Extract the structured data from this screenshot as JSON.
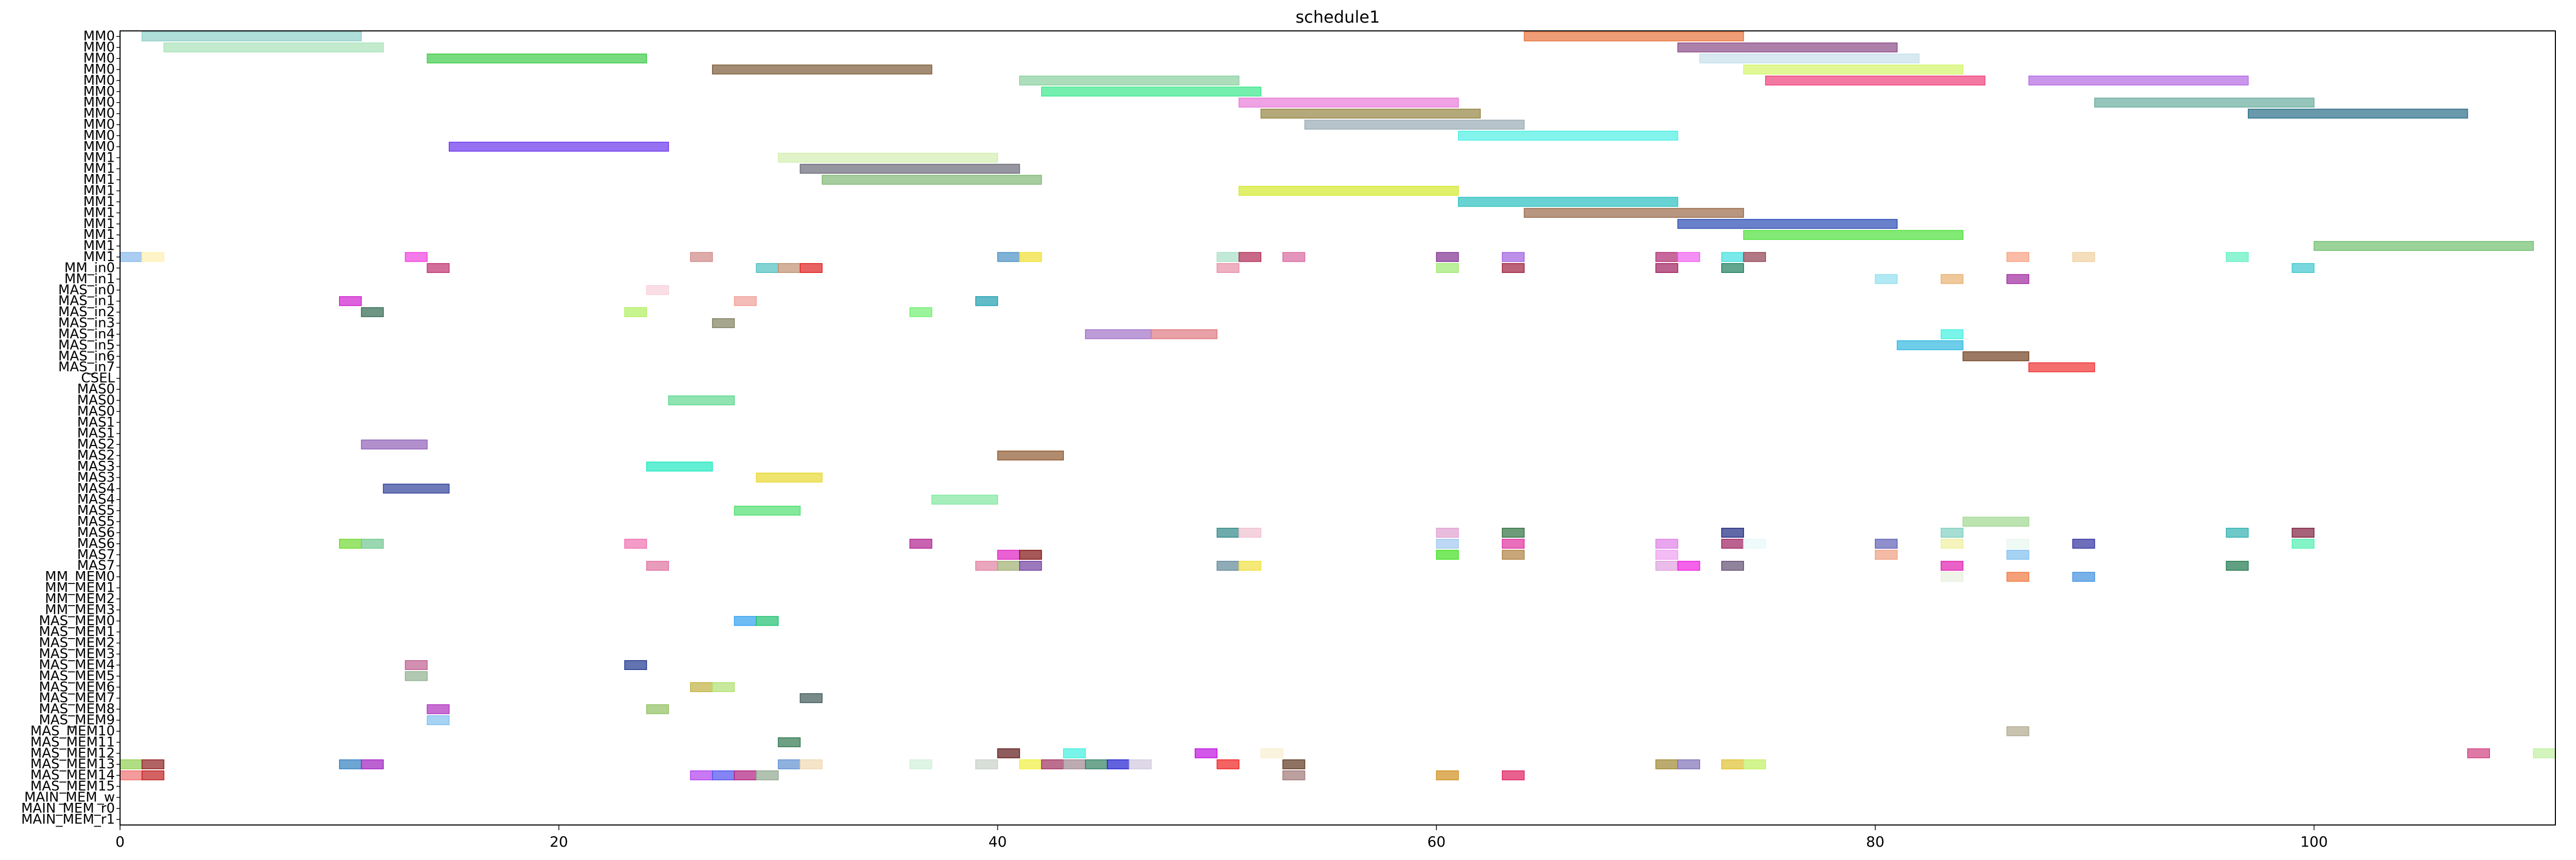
{
  "chart_data": {
    "type": "gantt",
    "title": "schedule1",
    "xlabel": "",
    "ylabel": "",
    "xlim": [
      0,
      111
    ],
    "x_ticks": [
      0,
      20,
      40,
      60,
      80,
      100
    ],
    "grid": false,
    "rows": [
      "MM0",
      "MM0",
      "MM0",
      "MM0",
      "MM0",
      "MM0",
      "MM0",
      "MM0",
      "MM0",
      "MM0",
      "MM0",
      "MM1",
      "MM1",
      "MM1",
      "MM1",
      "MM1",
      "MM1",
      "MM1",
      "MM1",
      "MM1",
      "MM1",
      "MM_in0",
      "MM_in1",
      "MAS_in0",
      "MAS_in1",
      "MAS_in2",
      "MAS_in3",
      "MAS_in4",
      "MAS_in5",
      "MAS_in6",
      "MAS_in7",
      "CSEL",
      "MAS0",
      "MAS0",
      "MAS0",
      "MAS1",
      "MAS1",
      "MAS2",
      "MAS2",
      "MAS3",
      "MAS3",
      "MAS4",
      "MAS4",
      "MAS5",
      "MAS5",
      "MAS6",
      "MAS6",
      "MAS7",
      "MAS7",
      "MM_MEM0",
      "MM_MEM1",
      "MM_MEM2",
      "MM_MEM3",
      "MAS_MEM0",
      "MAS_MEM1",
      "MAS_MEM2",
      "MAS_MEM3",
      "MAS_MEM4",
      "MAS_MEM5",
      "MAS_MEM6",
      "MAS_MEM7",
      "MAS_MEM8",
      "MAS_MEM9",
      "MAS_MEM10",
      "MAS_MEM11",
      "MAS_MEM12",
      "MAS_MEM13",
      "MAS_MEM14",
      "MAS_MEM15",
      "MAIN_MEM_w",
      "MAIN_MEM_r0",
      "MAIN_MEM_r1"
    ],
    "tasks": [
      {
        "row": 0,
        "start": 1,
        "end": 11,
        "color": "#8fd0c8"
      },
      {
        "row": 0,
        "start": 64,
        "end": 74,
        "color": "#e8743c"
      },
      {
        "row": 1,
        "start": 2,
        "end": 12,
        "color": "#a8e2b8"
      },
      {
        "row": 1,
        "start": 71,
        "end": 81,
        "color": "#8a4a86"
      },
      {
        "row": 2,
        "start": 14,
        "end": 24,
        "color": "#3fcc4a"
      },
      {
        "row": 2,
        "start": 72,
        "end": 82,
        "color": "#c8e0ec"
      },
      {
        "row": 3,
        "start": 27,
        "end": 37,
        "color": "#7a5a36"
      },
      {
        "row": 3,
        "start": 74,
        "end": 84,
        "color": "#d4f56a"
      },
      {
        "row": 4,
        "start": 41,
        "end": 51,
        "color": "#8ad0a0"
      },
      {
        "row": 4,
        "start": 75,
        "end": 85,
        "color": "#f0407a"
      },
      {
        "row": 4,
        "start": 87,
        "end": 97,
        "color": "#b46ae4"
      },
      {
        "row": 5,
        "start": 42,
        "end": 52,
        "color": "#3ae88c"
      },
      {
        "row": 6,
        "start": 51,
        "end": 61,
        "color": "#e87ad8"
      },
      {
        "row": 6,
        "start": 90,
        "end": 100,
        "color": "#6aaca0"
      },
      {
        "row": 7,
        "start": 52,
        "end": 62,
        "color": "#948442"
      },
      {
        "row": 7,
        "start": 97,
        "end": 107,
        "color": "#2a6e86"
      },
      {
        "row": 8,
        "start": 54,
        "end": 64,
        "color": "#98aab4"
      },
      {
        "row": 9,
        "start": 61,
        "end": 71,
        "color": "#4ef0e4"
      },
      {
        "row": 10,
        "start": 15,
        "end": 25,
        "color": "#6a34ec"
      },
      {
        "row": 11,
        "start": 30,
        "end": 40,
        "color": "#d4eeb0"
      },
      {
        "row": 12,
        "start": 31,
        "end": 41,
        "color": "#6a6a78"
      },
      {
        "row": 13,
        "start": 32,
        "end": 42,
        "color": "#80b874"
      },
      {
        "row": 14,
        "start": 51,
        "end": 61,
        "color": "#d4ea2c"
      },
      {
        "row": 15,
        "start": 61,
        "end": 71,
        "color": "#2ac0c0"
      },
      {
        "row": 16,
        "start": 64,
        "end": 74,
        "color": "#9a6a4a"
      },
      {
        "row": 17,
        "start": 71,
        "end": 81,
        "color": "#2a4ab4"
      },
      {
        "row": 18,
        "start": 74,
        "end": 84,
        "color": "#4ee03a"
      },
      {
        "row": 19,
        "start": 100,
        "end": 110,
        "color": "#70c070"
      },
      {
        "row": 20,
        "start": 0,
        "end": 1,
        "color": "#88b8ec"
      },
      {
        "row": 20,
        "start": 1,
        "end": 2,
        "color": "#fff0b0"
      },
      {
        "row": 20,
        "start": 13,
        "end": 14,
        "color": "#f040e0"
      },
      {
        "row": 20,
        "start": 26,
        "end": 27,
        "color": "#d08888"
      },
      {
        "row": 20,
        "start": 40,
        "end": 41,
        "color": "#4a90c4"
      },
      {
        "row": 20,
        "start": 41,
        "end": 42,
        "color": "#f0e030"
      },
      {
        "row": 20,
        "start": 50,
        "end": 51,
        "color": "#a8e0c8"
      },
      {
        "row": 20,
        "start": 51,
        "end": 52,
        "color": "#b02a56"
      },
      {
        "row": 20,
        "start": 53,
        "end": 54,
        "color": "#d868a0"
      },
      {
        "row": 20,
        "start": 60,
        "end": 61,
        "color": "#803090"
      },
      {
        "row": 20,
        "start": 63,
        "end": 64,
        "color": "#a060e0"
      },
      {
        "row": 20,
        "start": 70,
        "end": 71,
        "color": "#b02a70"
      },
      {
        "row": 20,
        "start": 71,
        "end": 72,
        "color": "#f060f0"
      },
      {
        "row": 20,
        "start": 73,
        "end": 74,
        "color": "#40e0e0"
      },
      {
        "row": 20,
        "start": 74,
        "end": 75,
        "color": "#904050"
      },
      {
        "row": 20,
        "start": 86,
        "end": 87,
        "color": "#f8a080"
      },
      {
        "row": 20,
        "start": 89,
        "end": 90,
        "color": "#f0d0a0"
      },
      {
        "row": 20,
        "start": 96,
        "end": 97,
        "color": "#60f0c0"
      },
      {
        "row": 21,
        "start": 14,
        "end": 15,
        "color": "#c03070"
      },
      {
        "row": 21,
        "start": 29,
        "end": 30,
        "color": "#50c0c0"
      },
      {
        "row": 21,
        "start": 30,
        "end": 31,
        "color": "#c09070"
      },
      {
        "row": 21,
        "start": 31,
        "end": 32,
        "color": "#e02020"
      },
      {
        "row": 21,
        "start": 50,
        "end": 51,
        "color": "#e890a8"
      },
      {
        "row": 21,
        "start": 60,
        "end": 61,
        "color": "#a0e870"
      },
      {
        "row": 21,
        "start": 63,
        "end": 64,
        "color": "#a02040"
      },
      {
        "row": 21,
        "start": 70,
        "end": 71,
        "color": "#a02060"
      },
      {
        "row": 21,
        "start": 73,
        "end": 74,
        "color": "#208060"
      },
      {
        "row": 21,
        "start": 99,
        "end": 100,
        "color": "#40c8d0"
      },
      {
        "row": 22,
        "start": 80,
        "end": 81,
        "color": "#90e0f0"
      },
      {
        "row": 22,
        "start": 83,
        "end": 84,
        "color": "#e8b070"
      },
      {
        "row": 22,
        "start": 86,
        "end": 87,
        "color": "#a02aa0"
      },
      {
        "row": 23,
        "start": 24,
        "end": 25,
        "color": "#f8d0dc"
      },
      {
        "row": 24,
        "start": 10,
        "end": 11,
        "color": "#d020d0"
      },
      {
        "row": 24,
        "start": 28,
        "end": 29,
        "color": "#f0a098"
      },
      {
        "row": 24,
        "start": 39,
        "end": 40,
        "color": "#20a0b0"
      },
      {
        "row": 25,
        "start": 11,
        "end": 12,
        "color": "#306850"
      },
      {
        "row": 25,
        "start": 23,
        "end": 24,
        "color": "#b0f060"
      },
      {
        "row": 25,
        "start": 36,
        "end": 37,
        "color": "#70f070"
      },
      {
        "row": 26,
        "start": 27,
        "end": 28,
        "color": "#808060"
      },
      {
        "row": 27,
        "start": 44,
        "end": 47,
        "color": "#a070c8"
      },
      {
        "row": 27,
        "start": 47,
        "end": 50,
        "color": "#e07880"
      },
      {
        "row": 27,
        "start": 83,
        "end": 84,
        "color": "#40f0e0"
      },
      {
        "row": 28,
        "start": 81,
        "end": 84,
        "color": "#30b8e0"
      },
      {
        "row": 29,
        "start": 84,
        "end": 87,
        "color": "#704020"
      },
      {
        "row": 30,
        "start": 87,
        "end": 90,
        "color": "#f03030"
      },
      {
        "row": 33,
        "start": 25,
        "end": 28,
        "color": "#60d890"
      },
      {
        "row": 37,
        "start": 11,
        "end": 14,
        "color": "#9060b8"
      },
      {
        "row": 38,
        "start": 40,
        "end": 43,
        "color": "#905a30"
      },
      {
        "row": 39,
        "start": 24,
        "end": 27,
        "color": "#20e8c0"
      },
      {
        "row": 40,
        "start": 29,
        "end": 32,
        "color": "#e8d830"
      },
      {
        "row": 41,
        "start": 12,
        "end": 15,
        "color": "#304098"
      },
      {
        "row": 42,
        "start": 37,
        "end": 40,
        "color": "#80e8a0"
      },
      {
        "row": 43,
        "start": 28,
        "end": 31,
        "color": "#50e070"
      },
      {
        "row": 44,
        "start": 84,
        "end": 87,
        "color": "#a0d890"
      },
      {
        "row": 45,
        "start": 50,
        "end": 51,
        "color": "#308888"
      },
      {
        "row": 45,
        "start": 51,
        "end": 52,
        "color": "#f0c0d0"
      },
      {
        "row": 45,
        "start": 60,
        "end": 61,
        "color": "#e0a0d0"
      },
      {
        "row": 45,
        "start": 63,
        "end": 64,
        "color": "#307040"
      },
      {
        "row": 45,
        "start": 73,
        "end": 74,
        "color": "#202a80"
      },
      {
        "row": 45,
        "start": 83,
        "end": 84,
        "color": "#80d0c0"
      },
      {
        "row": 45,
        "start": 96,
        "end": 97,
        "color": "#30b0b0"
      },
      {
        "row": 45,
        "start": 99,
        "end": 100,
        "color": "#802040"
      },
      {
        "row": 46,
        "start": 10,
        "end": 11,
        "color": "#70d830"
      },
      {
        "row": 46,
        "start": 11,
        "end": 12,
        "color": "#70c890"
      },
      {
        "row": 46,
        "start": 23,
        "end": 24,
        "color": "#f070b0"
      },
      {
        "row": 46,
        "start": 36,
        "end": 37,
        "color": "#b02090"
      },
      {
        "row": 46,
        "start": 60,
        "end": 61,
        "color": "#a0c8f0"
      },
      {
        "row": 46,
        "start": 63,
        "end": 64,
        "color": "#e030a0"
      },
      {
        "row": 46,
        "start": 70,
        "end": 71,
        "color": "#e080e8"
      },
      {
        "row": 46,
        "start": 73,
        "end": 74,
        "color": "#a02060"
      },
      {
        "row": 46,
        "start": 74,
        "end": 75,
        "color": "#e8f8f8"
      },
      {
        "row": 46,
        "start": 80,
        "end": 81,
        "color": "#6060b8"
      },
      {
        "row": 46,
        "start": 83,
        "end": 84,
        "color": "#f0f0a0"
      },
      {
        "row": 46,
        "start": 86,
        "end": 87,
        "color": "#e8f8f0"
      },
      {
        "row": 46,
        "start": 89,
        "end": 90,
        "color": "#3030a0"
      },
      {
        "row": 46,
        "start": 99,
        "end": 100,
        "color": "#50f0b0"
      },
      {
        "row": 47,
        "start": 40,
        "end": 41,
        "color": "#e020c0"
      },
      {
        "row": 47,
        "start": 41,
        "end": 42,
        "color": "#801010"
      },
      {
        "row": 47,
        "start": 60,
        "end": 61,
        "color": "#40e020"
      },
      {
        "row": 47,
        "start": 63,
        "end": 64,
        "color": "#b08040"
      },
      {
        "row": 47,
        "start": 70,
        "end": 71,
        "color": "#f0a0f0"
      },
      {
        "row": 47,
        "start": 80,
        "end": 81,
        "color": "#f0a080"
      },
      {
        "row": 47,
        "start": 86,
        "end": 87,
        "color": "#80c0f0"
      },
      {
        "row": 48,
        "start": 24,
        "end": 25,
        "color": "#e070a0"
      },
      {
        "row": 48,
        "start": 39,
        "end": 40,
        "color": "#e080a0"
      },
      {
        "row": 48,
        "start": 40,
        "end": 41,
        "color": "#a0b070"
      },
      {
        "row": 48,
        "start": 41,
        "end": 42,
        "color": "#7040a0"
      },
      {
        "row": 48,
        "start": 50,
        "end": 51,
        "color": "#608898"
      },
      {
        "row": 48,
        "start": 51,
        "end": 52,
        "color": "#f0e040"
      },
      {
        "row": 48,
        "start": 70,
        "end": 71,
        "color": "#e0a0e0"
      },
      {
        "row": 48,
        "start": 71,
        "end": 72,
        "color": "#f020e0"
      },
      {
        "row": 48,
        "start": 73,
        "end": 74,
        "color": "#605070"
      },
      {
        "row": 48,
        "start": 83,
        "end": 84,
        "color": "#e020b0"
      },
      {
        "row": 48,
        "start": 96,
        "end": 97,
        "color": "#207850"
      },
      {
        "row": 49,
        "start": 83,
        "end": 84,
        "color": "#e8f0e0"
      },
      {
        "row": 49,
        "start": 86,
        "end": 87,
        "color": "#f07840"
      },
      {
        "row": 49,
        "start": 89,
        "end": 90,
        "color": "#4090e0"
      },
      {
        "row": 53,
        "start": 28,
        "end": 29,
        "color": "#30a0f0"
      },
      {
        "row": 53,
        "start": 29,
        "end": 30,
        "color": "#20c070"
      },
      {
        "row": 57,
        "start": 13,
        "end": 14,
        "color": "#c06090"
      },
      {
        "row": 57,
        "start": 23,
        "end": 24,
        "color": "#203890"
      },
      {
        "row": 58,
        "start": 13,
        "end": 14,
        "color": "#90b090"
      },
      {
        "row": 59,
        "start": 26,
        "end": 27,
        "color": "#c0b040"
      },
      {
        "row": 59,
        "start": 27,
        "end": 28,
        "color": "#b0e070"
      },
      {
        "row": 60,
        "start": 31,
        "end": 32,
        "color": "#405858"
      },
      {
        "row": 61,
        "start": 14,
        "end": 15,
        "color": "#b030c0"
      },
      {
        "row": 61,
        "start": 24,
        "end": 25,
        "color": "#90c060"
      },
      {
        "row": 62,
        "start": 14,
        "end": 15,
        "color": "#80c0f0"
      },
      {
        "row": 63,
        "start": 86,
        "end": 87,
        "color": "#b0a890"
      },
      {
        "row": 64,
        "start": 30,
        "end": 31,
        "color": "#307850"
      },
      {
        "row": 65,
        "start": 40,
        "end": 41,
        "color": "#601818"
      },
      {
        "row": 65,
        "start": 43,
        "end": 44,
        "color": "#40f0e0"
      },
      {
        "row": 65,
        "start": 49,
        "end": 50,
        "color": "#c010e0"
      },
      {
        "row": 65,
        "start": 52,
        "end": 53,
        "color": "#f8f0d0"
      },
      {
        "row": 65,
        "start": 107,
        "end": 108,
        "color": "#d04080"
      },
      {
        "row": 65,
        "start": 110,
        "end": 111,
        "color": "#c0f0a0"
      },
      {
        "row": 66,
        "start": 0,
        "end": 1,
        "color": "#90d050"
      },
      {
        "row": 66,
        "start": 1,
        "end": 2,
        "color": "#902020"
      },
      {
        "row": 66,
        "start": 10,
        "end": 11,
        "color": "#3080c0"
      },
      {
        "row": 66,
        "start": 11,
        "end": 12,
        "color": "#a020c0"
      },
      {
        "row": 66,
        "start": 30,
        "end": 31,
        "color": "#6090d0"
      },
      {
        "row": 66,
        "start": 31,
        "end": 32,
        "color": "#f0d8b0"
      },
      {
        "row": 66,
        "start": 36,
        "end": 37,
        "color": "#d0f0d8"
      },
      {
        "row": 66,
        "start": 39,
        "end": 40,
        "color": "#c8d0c8"
      },
      {
        "row": 66,
        "start": 41,
        "end": 42,
        "color": "#f0f040"
      },
      {
        "row": 66,
        "start": 42,
        "end": 43,
        "color": "#a03060"
      },
      {
        "row": 66,
        "start": 43,
        "end": 44,
        "color": "#a08890"
      },
      {
        "row": 66,
        "start": 44,
        "end": 45,
        "color": "#308060"
      },
      {
        "row": 66,
        "start": 45,
        "end": 46,
        "color": "#2020d0"
      },
      {
        "row": 66,
        "start": 46,
        "end": 47,
        "color": "#d0c8e0"
      },
      {
        "row": 66,
        "start": 50,
        "end": 51,
        "color": "#f02020"
      },
      {
        "row": 66,
        "start": 53,
        "end": 54,
        "color": "#603820"
      },
      {
        "row": 66,
        "start": 70,
        "end": 71,
        "color": "#a08830"
      },
      {
        "row": 66,
        "start": 71,
        "end": 72,
        "color": "#8070b8"
      },
      {
        "row": 66,
        "start": 73,
        "end": 74,
        "color": "#e0c030"
      },
      {
        "row": 66,
        "start": 74,
        "end": 75,
        "color": "#c0f060"
      },
      {
        "row": 67,
        "start": 0,
        "end": 1,
        "color": "#f07070"
      },
      {
        "row": 67,
        "start": 1,
        "end": 2,
        "color": "#c02020"
      },
      {
        "row": 67,
        "start": 26,
        "end": 27,
        "color": "#b040f0"
      },
      {
        "row": 67,
        "start": 27,
        "end": 28,
        "color": "#5050f0"
      },
      {
        "row": 67,
        "start": 28,
        "end": 29,
        "color": "#b02080"
      },
      {
        "row": 67,
        "start": 29,
        "end": 30,
        "color": "#90a890"
      },
      {
        "row": 67,
        "start": 53,
        "end": 54,
        "color": "#a07878"
      },
      {
        "row": 67,
        "start": 60,
        "end": 61,
        "color": "#d09020"
      },
      {
        "row": 67,
        "start": 63,
        "end": 64,
        "color": "#e02060"
      }
    ]
  }
}
